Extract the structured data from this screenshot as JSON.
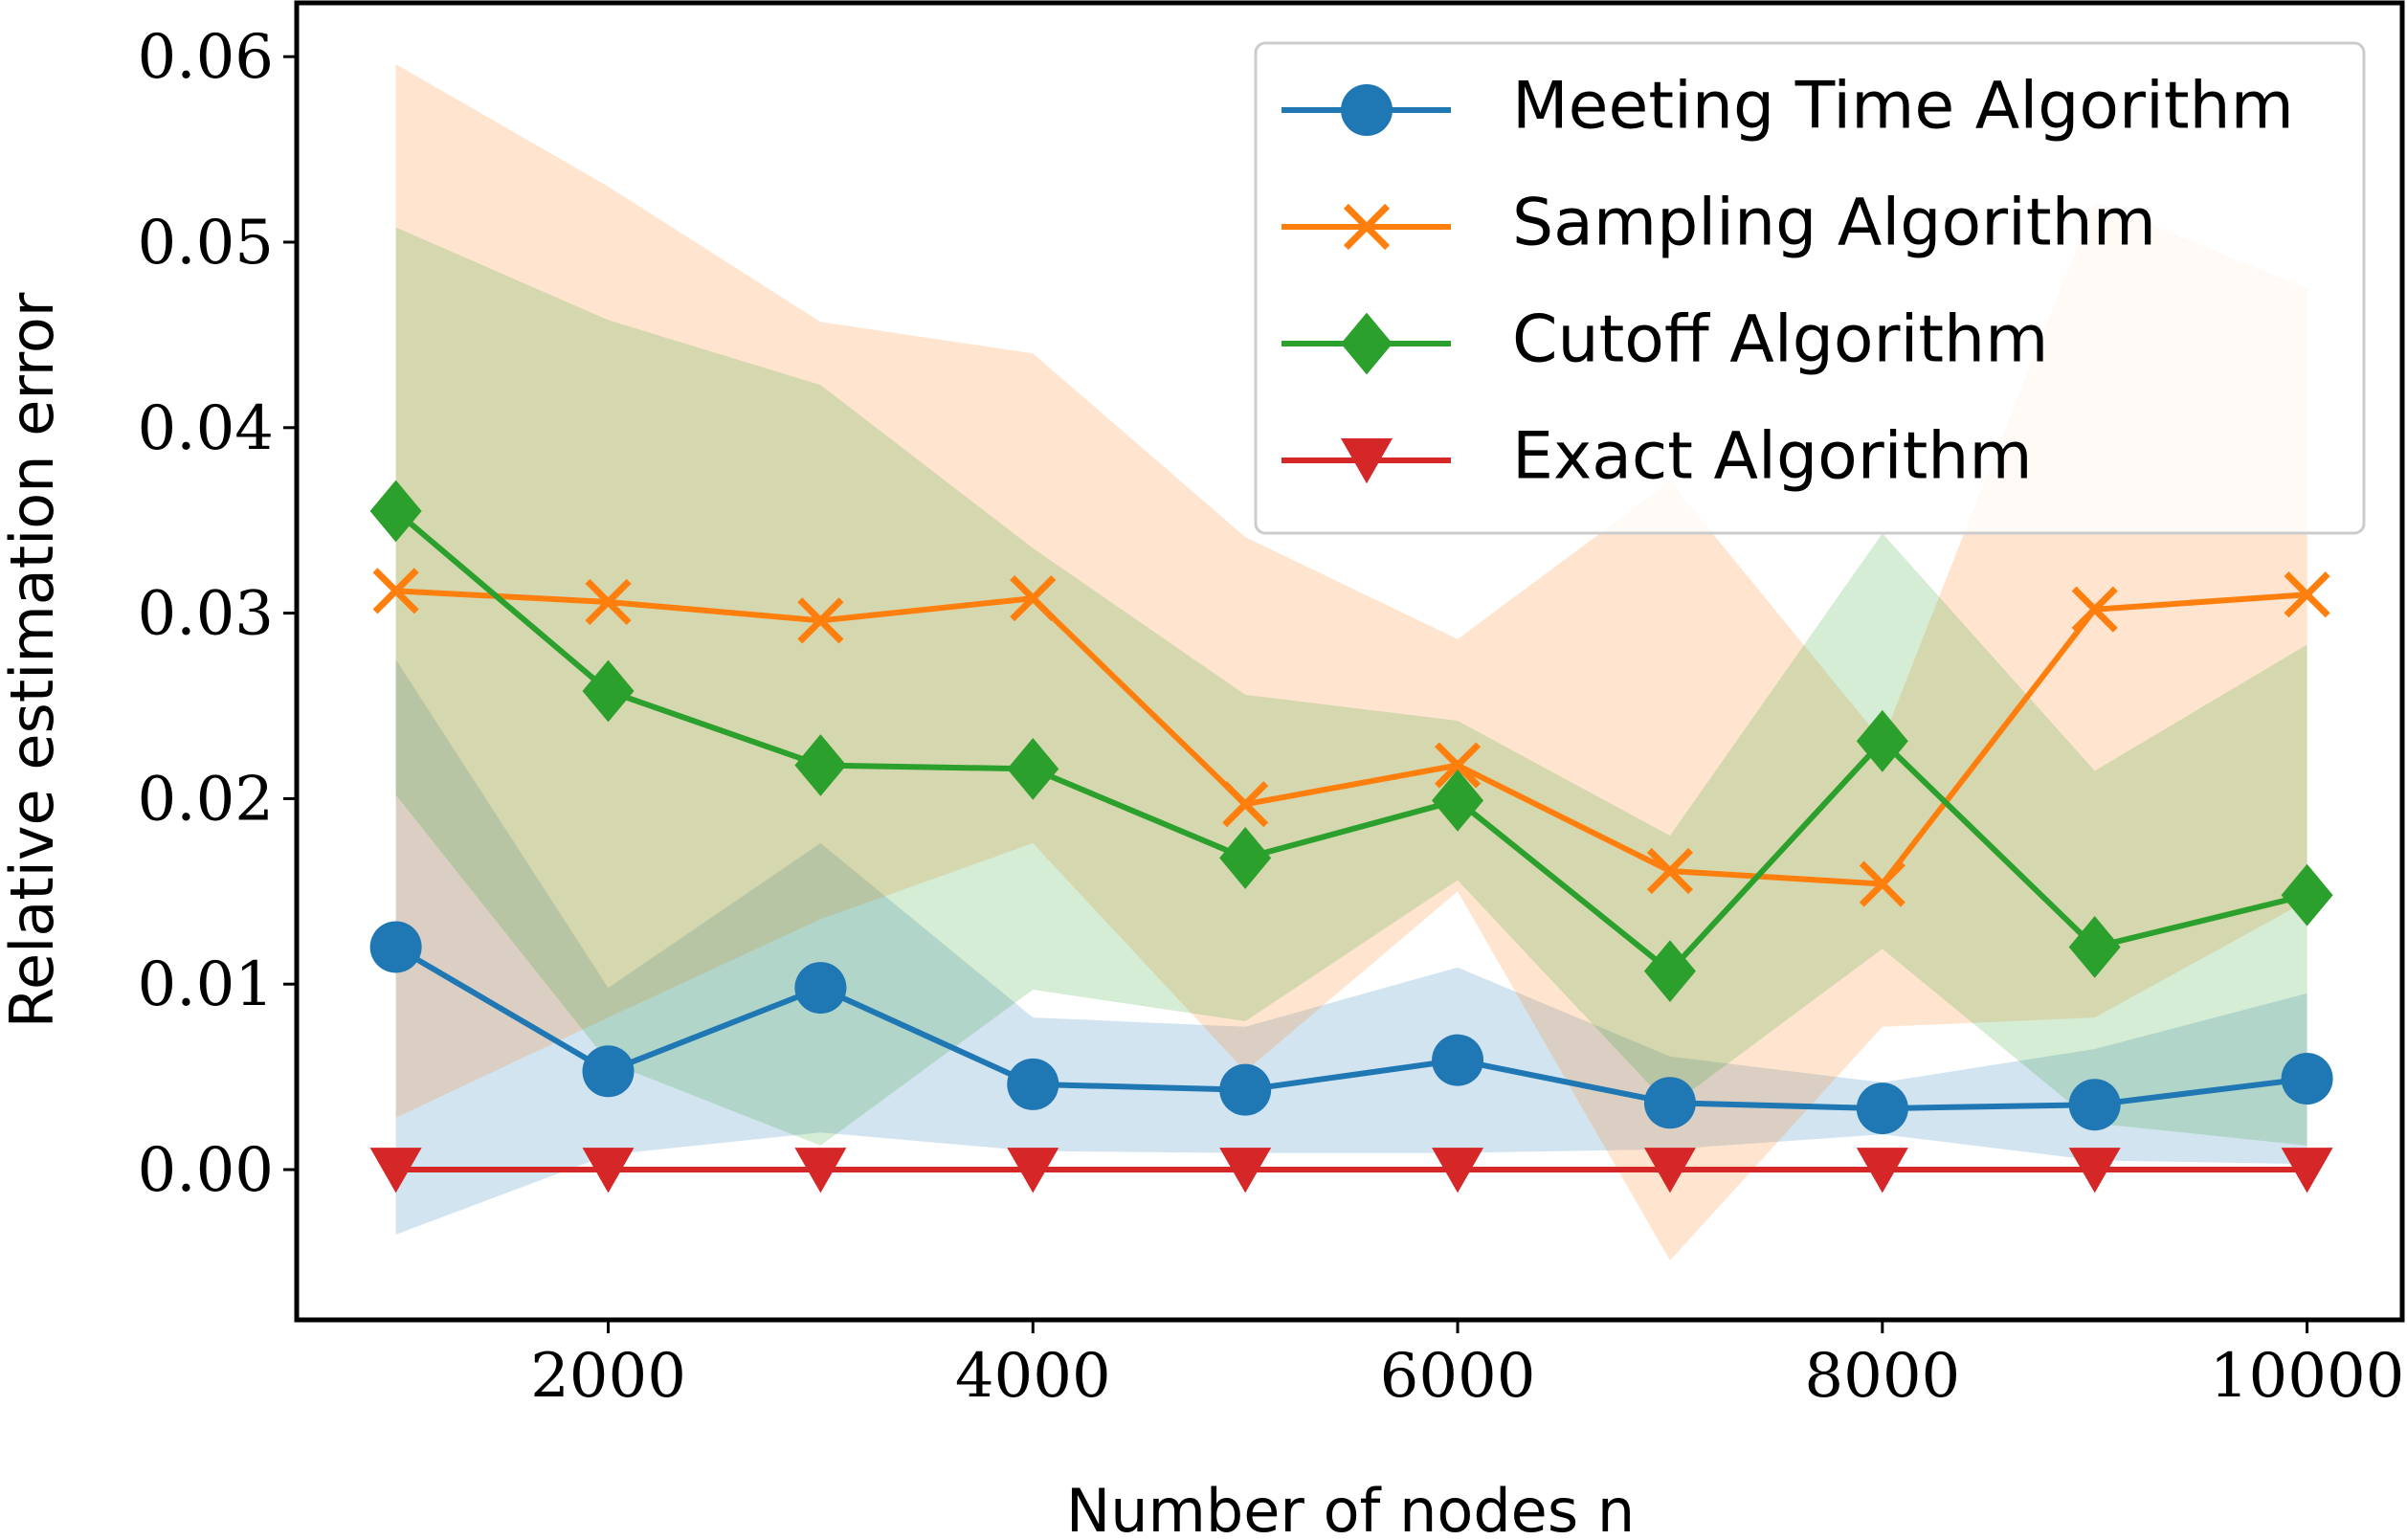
{
  "chart_data": {
    "type": "line",
    "x_label": "Number of nodes n",
    "y_label": "Relative estimation error",
    "x": [
      1000,
      2000,
      3000,
      4000,
      5000,
      6000,
      7000,
      8000,
      9000,
      10000
    ],
    "xlim": [
      533,
      10448
    ],
    "ylim": [
      -0.0081,
      0.0629
    ],
    "xticks": [
      2000,
      4000,
      6000,
      8000,
      10000
    ],
    "yticks": [
      {
        "value": 0,
        "label": "0.00"
      },
      {
        "value": 0.01,
        "label": "0.01"
      },
      {
        "value": 0.02,
        "label": "0.02"
      },
      {
        "value": 0.03,
        "label": "0.03"
      },
      {
        "value": 0.04,
        "label": "0.04"
      },
      {
        "value": 0.05,
        "label": "0.05"
      },
      {
        "value": 0.06,
        "label": "0.06"
      }
    ],
    "legend": "upper right",
    "series": [
      {
        "name": "Meeting Time Algorithm",
        "color": "#1f77b4",
        "marker": "circle",
        "values": [
          0.012,
          0.0053,
          0.0098,
          0.0046,
          0.0043,
          0.0059,
          0.0036,
          0.0033,
          0.0035,
          0.0049
        ],
        "error": [
          0.0155,
          0.0045,
          0.0078,
          0.0036,
          0.0034,
          0.005,
          0.0025,
          0.0014,
          0.003,
          0.0046
        ]
      },
      {
        "name": "Sampling Algorithm",
        "color": "#ff7f0e",
        "marker": "x",
        "values": [
          0.0312,
          0.0306,
          0.0296,
          0.0308,
          0.0197,
          0.0218,
          0.0161,
          0.0154,
          0.0302,
          0.031
        ],
        "error": [
          0.0284,
          0.0224,
          0.0161,
          0.0132,
          0.0144,
          0.0068,
          0.021,
          0.0077,
          0.022,
          0.0165
        ]
      },
      {
        "name": "Cutoff Algorithm",
        "color": "#2ca02c",
        "marker": "diamond",
        "values": [
          0.0355,
          0.0258,
          0.0218,
          0.0216,
          0.0168,
          0.0199,
          0.0107,
          0.0231,
          0.012,
          0.0148
        ],
        "error": [
          0.0153,
          0.02,
          0.0205,
          0.0119,
          0.0088,
          0.0043,
          0.0073,
          0.0112,
          0.0095,
          0.0135
        ]
      },
      {
        "name": "Exact Algorithm",
        "color": "#d62728",
        "marker": "triangle-down",
        "values": [
          0,
          0,
          0,
          0,
          0,
          0,
          0,
          0,
          0,
          0
        ],
        "error": [
          0,
          0,
          0,
          0,
          0,
          0,
          0,
          0,
          0,
          0
        ]
      }
    ]
  }
}
